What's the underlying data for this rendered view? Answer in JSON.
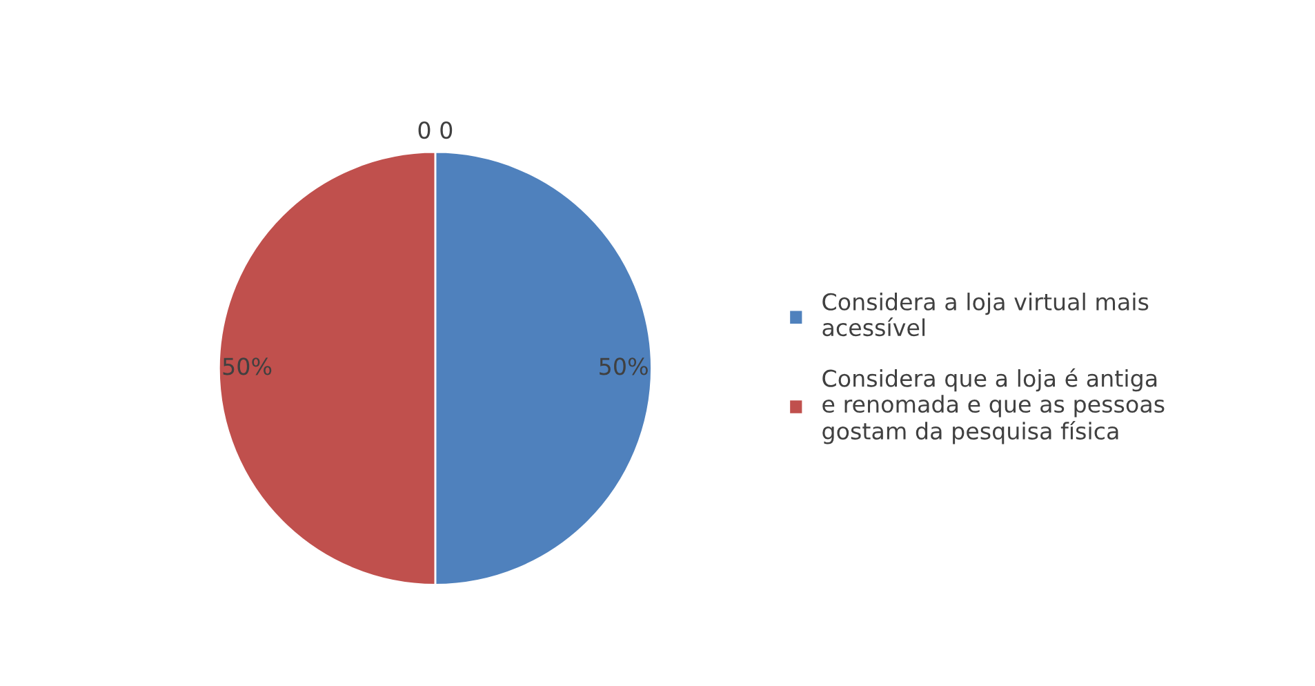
{
  "chart_data": {
    "type": "pie",
    "categories": [
      "Considera a loja virtual mais\nacessível",
      "Considera que a loja é antiga\ne renomada e que as pessoas\ngostam da pesquisa física"
    ],
    "values": [
      50,
      50
    ],
    "colors": [
      "#4f81bd",
      "#c0504d"
    ],
    "value_labels": [
      "50%",
      "50%"
    ],
    "annotations": [
      "0 0"
    ],
    "legend": "right"
  }
}
